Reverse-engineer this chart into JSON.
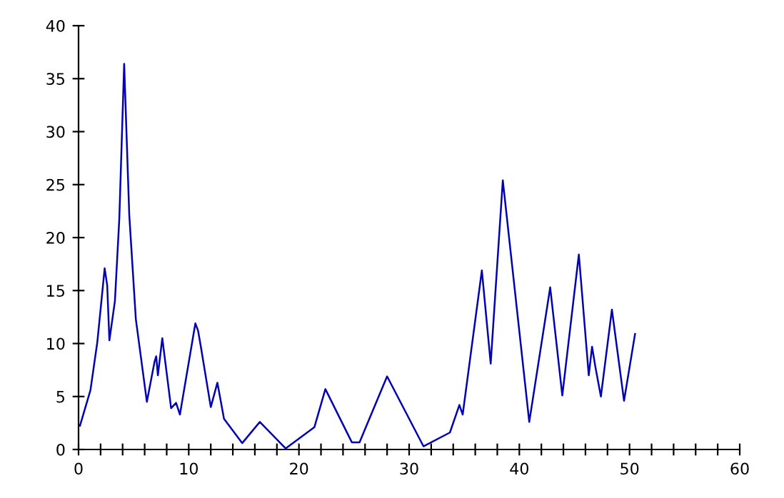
{
  "chart_data": {
    "type": "line",
    "x": [
      0.13,
      1.08,
      1.7,
      2.37,
      2.6,
      2.8,
      3.3,
      3.7,
      4.14,
      4.6,
      5.2,
      6.2,
      6.9,
      7.05,
      7.2,
      7.6,
      8.4,
      8.85,
      9.2,
      10.6,
      10.85,
      11.1,
      12.0,
      12.6,
      13.2,
      14.85,
      16.45,
      18.8,
      21.4,
      22.4,
      24.8,
      25.5,
      28.0,
      31.3,
      33.7,
      34.56,
      34.86,
      36.6,
      37.4,
      38.5,
      40.9,
      42.8,
      43.9,
      45.4,
      46.3,
      46.6,
      46.9,
      47.4,
      48.4,
      49.5,
      50.5
    ],
    "series": [
      {
        "color": "#0000b4",
        "values": [
          2.25,
          5.6,
          10.1,
          17.1,
          15.5,
          10.3,
          14,
          21.8,
          36.4,
          22.2,
          12.3,
          4.5,
          8.3,
          8.8,
          7.0,
          10.5,
          3.9,
          4.4,
          3.3,
          11.9,
          11.2,
          9.7,
          4.0,
          6.3,
          2.9,
          0.6,
          2.6,
          0.1,
          2.1,
          5.7,
          0.68,
          0.68,
          6.9,
          0.3,
          1.6,
          4.2,
          3.3,
          16.9,
          8.1,
          25.4,
          2.6,
          15.3,
          5.1,
          18.4,
          7.0,
          9.7,
          7.8,
          5.0,
          13.2,
          4.6,
          10.9
        ]
      }
    ],
    "xlim": [
      0,
      60
    ],
    "xticks": [
      0,
      {
        "value": 2,
        "label": null
      },
      {
        "value": 4,
        "label": null
      },
      {
        "value": 6,
        "label": null
      },
      {
        "value": 8,
        "label": null
      },
      10,
      {
        "value": 12,
        "label": null
      },
      {
        "value": 14,
        "label": null
      },
      {
        "value": 16,
        "label": null
      },
      {
        "value": 18,
        "label": null
      },
      20,
      {
        "value": 22,
        "label": null
      },
      {
        "value": 24,
        "label": null
      },
      {
        "value": 26,
        "label": null
      },
      {
        "value": 28,
        "label": null
      },
      30,
      {
        "value": 32,
        "label": null
      },
      {
        "value": 34,
        "label": null
      },
      {
        "value": 36,
        "label": null
      },
      {
        "value": 38,
        "label": null
      },
      40,
      {
        "value": 42,
        "label": null
      },
      {
        "value": 44,
        "label": null
      },
      {
        "value": 46,
        "label": null
      },
      {
        "value": 48,
        "label": null
      },
      50,
      {
        "value": 52,
        "label": null
      },
      {
        "value": 54,
        "label": null
      },
      {
        "value": 56,
        "label": null
      },
      {
        "value": 58,
        "label": null
      },
      60
    ],
    "ylim": [
      0,
      40
    ],
    "yticks": [
      0,
      5,
      10,
      15,
      20,
      25,
      30,
      35,
      40
    ],
    "grid": false,
    "legend": false,
    "marker": "none",
    "line_style": "solid"
  }
}
